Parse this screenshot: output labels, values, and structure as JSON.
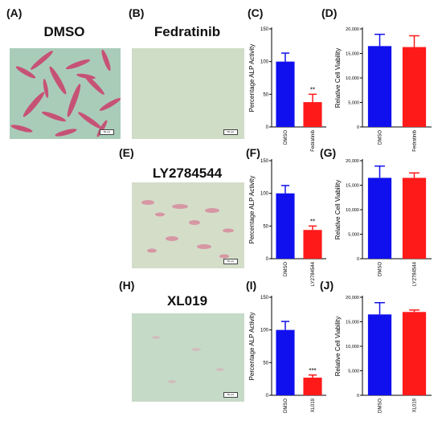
{
  "panels": {
    "a": {
      "label": "(A)",
      "title": "DMSO",
      "scale": "50 µm"
    },
    "b": {
      "label": "(B)",
      "title": "Fedratinib",
      "scale": "50 µm"
    },
    "e": {
      "label": "(E)",
      "title": "LY2784544",
      "scale": "50 µm"
    },
    "h": {
      "label": "(H)",
      "title": "XL019",
      "scale": "50 µm"
    },
    "c": {
      "label": "(C)"
    },
    "d": {
      "label": "(D)"
    },
    "f": {
      "label": "(F)"
    },
    "g": {
      "label": "(G)"
    },
    "i": {
      "label": "(I)"
    },
    "j": {
      "label": "(J)"
    }
  },
  "colors": {
    "dmso": "#1010ee",
    "treated": "#ff1a1a",
    "microscopy_bg": "#c8dcc8",
    "stain": "#d0506e"
  },
  "chart_data": [
    {
      "id": "C",
      "type": "bar",
      "categories": [
        "DMSO",
        "Fedratinib"
      ],
      "values": [
        100,
        38
      ],
      "errors": [
        13,
        12
      ],
      "significance": [
        "",
        "**"
      ],
      "ylabel": "Percentage ALP Activity",
      "ylim": [
        0,
        150
      ],
      "yticks": [
        "0",
        "50",
        "100",
        "150"
      ]
    },
    {
      "id": "D",
      "type": "bar",
      "categories": [
        "DMSO",
        "Fedratinib"
      ],
      "values": [
        16500,
        16300
      ],
      "errors": [
        2400,
        2300
      ],
      "significance": [
        "",
        ""
      ],
      "ylabel": "Relative Cell Viability",
      "ylim": [
        0,
        20000
      ],
      "yticks": [
        "0",
        "5,000",
        "10,000",
        "15,000",
        "20,000"
      ]
    },
    {
      "id": "F",
      "type": "bar",
      "categories": [
        "DMSO",
        "LY2784544"
      ],
      "values": [
        100,
        44
      ],
      "errors": [
        12,
        6
      ],
      "significance": [
        "",
        "**"
      ],
      "ylabel": "Percentage ALP Activity",
      "ylim": [
        0,
        150
      ],
      "yticks": [
        "0",
        "50",
        "100",
        "150"
      ]
    },
    {
      "id": "G",
      "type": "bar",
      "categories": [
        "DMSO",
        "LY2784544"
      ],
      "values": [
        16500,
        16500
      ],
      "errors": [
        2400,
        1000
      ],
      "significance": [
        "",
        ""
      ],
      "ylabel": "Relative Cell Viability",
      "ylim": [
        0,
        20000
      ],
      "yticks": [
        "0",
        "5,000",
        "10,000",
        "15,000",
        "20,000"
      ]
    },
    {
      "id": "I",
      "type": "bar",
      "categories": [
        "DMSO",
        "XL019"
      ],
      "values": [
        100,
        27
      ],
      "errors": [
        13,
        4
      ],
      "significance": [
        "",
        "***"
      ],
      "ylabel": "Percentage ALP Activity",
      "ylim": [
        0,
        150
      ],
      "yticks": [
        "0",
        "50",
        "100",
        "150"
      ]
    },
    {
      "id": "J",
      "type": "bar",
      "categories": [
        "DMSO",
        "XL019"
      ],
      "values": [
        16500,
        17000
      ],
      "errors": [
        2400,
        400
      ],
      "significance": [
        "",
        ""
      ],
      "ylabel": "Relative Cell Viability",
      "ylim": [
        0,
        20000
      ],
      "yticks": [
        "0",
        "5,000",
        "10,000",
        "15,000",
        "20,000"
      ]
    }
  ]
}
